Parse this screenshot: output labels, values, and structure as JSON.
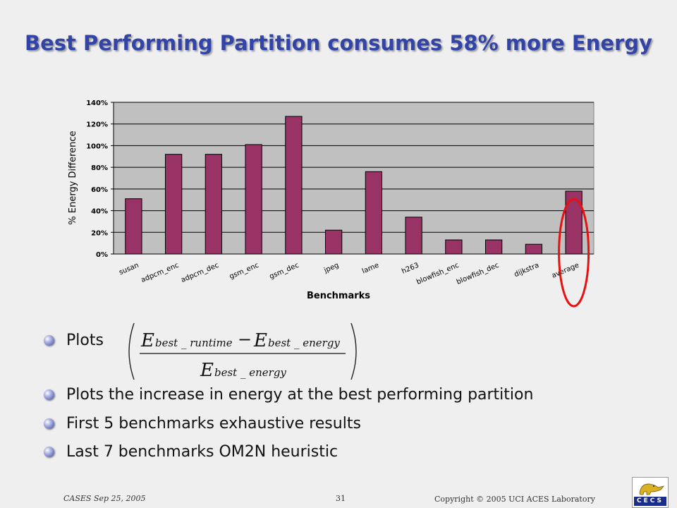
{
  "slide": {
    "title": "Best Performing Partition consumes 58% more Energy",
    "bullets": [
      "Plots",
      "Plots the increase in energy at the best performing partition",
      "First 5 benchmarks exhaustive results",
      "Last 7 benchmarks OM2N heuristic"
    ],
    "formula": {
      "numerator_left": "E",
      "numerator_left_sub": "best _ runtime",
      "operator": "−",
      "numerator_right": "E",
      "numerator_right_sub": "best _ energy",
      "denominator": "E",
      "denominator_sub": "best _ energy"
    }
  },
  "footer": {
    "left": "CASES Sep 25, 2005",
    "page": "31",
    "right": "Copyright © 2005 UCI ACES Laboratory",
    "logo_text": "CECS"
  },
  "colors": {
    "bar": "#993366",
    "plot_bg": "#c0c0c0",
    "highlight_circle": "#e81010",
    "title": "#3344a8"
  },
  "chart_data": {
    "type": "bar",
    "categories": [
      "susan",
      "adpcm_enc",
      "adpcm_dec",
      "gsm_enc",
      "gsm_dec",
      "jpeg",
      "lame",
      "h263",
      "blowfish_enc",
      "blowfish_dec",
      "dijkstra",
      "average"
    ],
    "values": [
      51,
      92,
      92,
      101,
      127,
      22,
      76,
      34,
      13,
      13,
      9,
      58
    ],
    "value_unit": "%",
    "xlabel": "Benchmarks",
    "ylabel": "% Energy Difference",
    "ylim": [
      0,
      140
    ],
    "yticks": [
      "0%",
      "20%",
      "40%",
      "60%",
      "80%",
      "100%",
      "120%",
      "140%"
    ],
    "grid": true,
    "highlighted_category": "average"
  }
}
